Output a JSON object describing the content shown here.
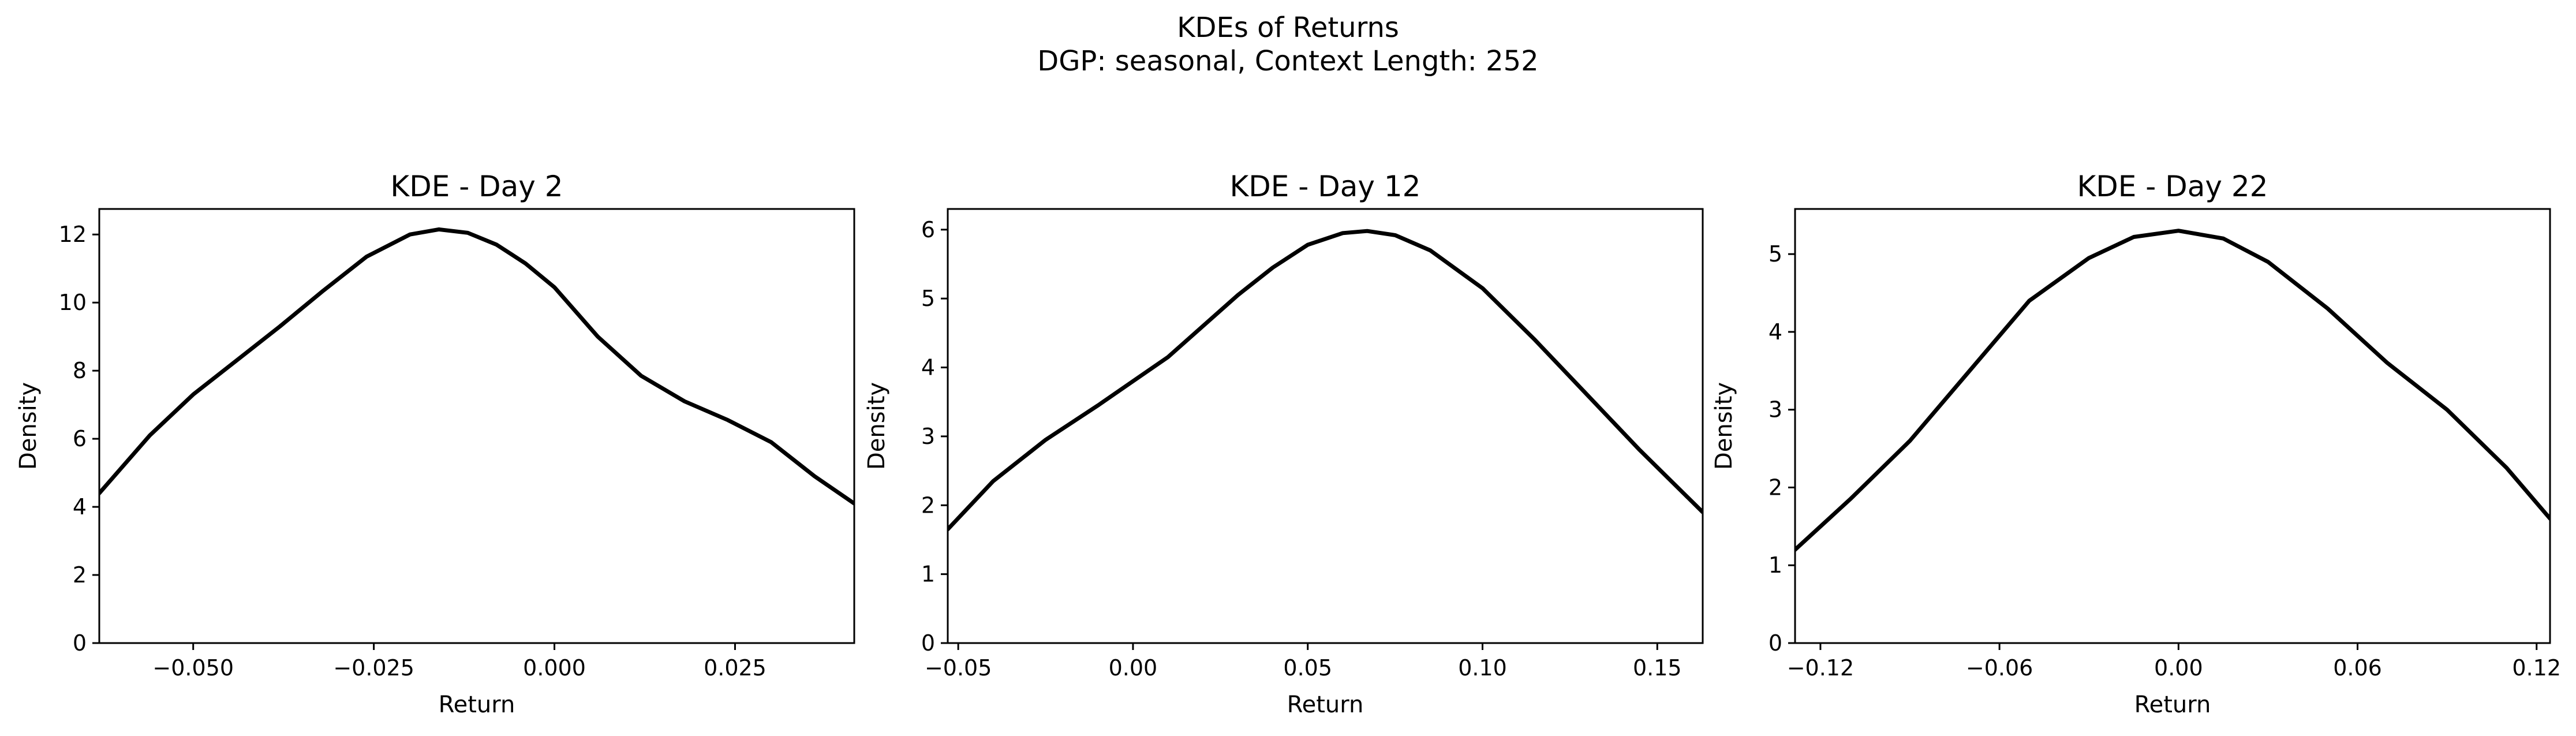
{
  "figure": {
    "title_line1": "KDEs of Returns",
    "title_line2": "DGP: seasonal, Context Length: 252"
  },
  "chart_data": [
    {
      "type": "line",
      "title": "KDE - Day 2",
      "xlabel": "Return",
      "ylabel": "Density",
      "xlim": [
        -0.063,
        0.0415
      ],
      "ylim": [
        0,
        12.75
      ],
      "xticks": [
        -0.05,
        -0.025,
        0.0,
        0.025
      ],
      "xtick_labels": [
        "−0.050",
        "−0.025",
        "0.000",
        "0.025"
      ],
      "yticks": [
        0,
        2,
        4,
        6,
        8,
        10,
        12
      ],
      "ytick_labels": [
        "0",
        "2",
        "4",
        "6",
        "8",
        "10",
        "12"
      ],
      "grid": false,
      "series": [
        {
          "color": "#000000",
          "x": [
            -0.063,
            -0.056,
            -0.05,
            -0.044,
            -0.038,
            -0.032,
            -0.026,
            -0.02,
            -0.016,
            -0.012,
            -0.008,
            -0.004,
            0.0,
            0.006,
            0.012,
            0.018,
            0.024,
            0.03,
            0.036,
            0.0415
          ],
          "y": [
            4.4,
            6.1,
            7.3,
            8.3,
            9.3,
            10.35,
            11.35,
            12.0,
            12.15,
            12.05,
            11.7,
            11.15,
            10.45,
            9.0,
            7.85,
            7.1,
            6.55,
            5.9,
            4.9,
            4.1
          ]
        }
      ]
    },
    {
      "type": "line",
      "title": "KDE - Day 12",
      "xlabel": "Return",
      "ylabel": "Density",
      "xlim": [
        -0.053,
        0.163
      ],
      "ylim": [
        0,
        6.3
      ],
      "xticks": [
        -0.05,
        0.0,
        0.05,
        0.1,
        0.15
      ],
      "xtick_labels": [
        "−0.05",
        "0.00",
        "0.05",
        "0.10",
        "0.15"
      ],
      "yticks": [
        0,
        1,
        2,
        3,
        4,
        5,
        6
      ],
      "ytick_labels": [
        "0",
        "1",
        "2",
        "3",
        "4",
        "5",
        "6"
      ],
      "grid": false,
      "series": [
        {
          "color": "#000000",
          "x": [
            -0.053,
            -0.04,
            -0.025,
            -0.01,
            0.0,
            0.01,
            0.02,
            0.03,
            0.04,
            0.05,
            0.06,
            0.067,
            0.075,
            0.085,
            0.1,
            0.115,
            0.13,
            0.145,
            0.163
          ],
          "y": [
            1.65,
            2.35,
            2.95,
            3.45,
            3.8,
            4.15,
            4.6,
            5.05,
            5.45,
            5.78,
            5.95,
            5.98,
            5.92,
            5.7,
            5.15,
            4.4,
            3.6,
            2.8,
            1.9
          ]
        }
      ]
    },
    {
      "type": "line",
      "title": "KDE - Day 22",
      "xlabel": "Return",
      "ylabel": "Density",
      "xlim": [
        -0.1285,
        0.1245
      ],
      "ylim": [
        0,
        5.58
      ],
      "xticks": [
        -0.12,
        -0.06,
        0.0,
        0.06,
        0.12
      ],
      "xtick_labels": [
        "−0.12",
        "−0.06",
        "0.00",
        "0.06",
        "0.12"
      ],
      "yticks": [
        0,
        1,
        2,
        3,
        4,
        5
      ],
      "ytick_labels": [
        "0",
        "1",
        "2",
        "3",
        "4",
        "5"
      ],
      "grid": false,
      "series": [
        {
          "color": "#000000",
          "x": [
            -0.1285,
            -0.11,
            -0.09,
            -0.07,
            -0.05,
            -0.03,
            -0.015,
            0.0,
            0.015,
            0.03,
            0.05,
            0.07,
            0.09,
            0.11,
            0.1245
          ],
          "y": [
            1.2,
            1.85,
            2.6,
            3.5,
            4.4,
            4.95,
            5.22,
            5.3,
            5.2,
            4.9,
            4.3,
            3.6,
            3.0,
            2.25,
            1.6
          ]
        }
      ]
    }
  ]
}
